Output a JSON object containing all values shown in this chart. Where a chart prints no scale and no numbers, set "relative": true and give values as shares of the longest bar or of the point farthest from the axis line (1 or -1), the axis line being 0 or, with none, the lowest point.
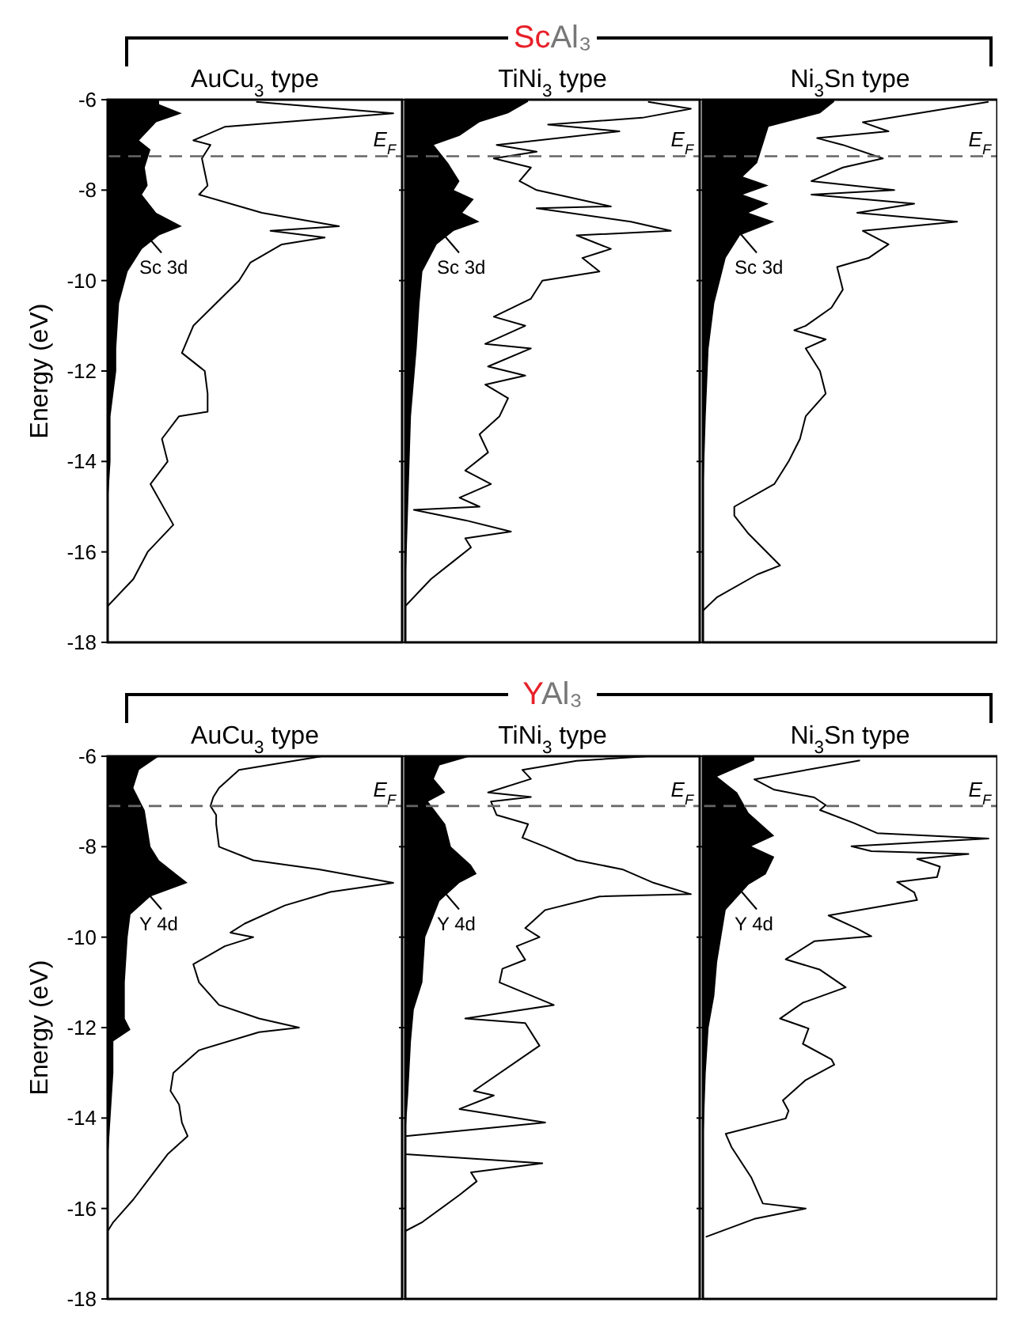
{
  "chart_data": [
    {
      "type": "line",
      "orientation": "horizontal",
      "relative": true,
      "subtitle": "AuCu$_{3}$ type",
      "ylabel": "Energy (eV)",
      "ylim": [
        -18,
        -6
      ],
      "yticks": [
        -6,
        -8,
        -10,
        -12,
        -14,
        -16,
        -18
      ],
      "tick_labels": "y",
      "annotations": [
        "Sc 3d"
      ],
      "ref_lines": [
        {
          "axis": "y",
          "value": -7.25,
          "label": "E$_{F}$",
          "color": "#666666",
          "line_style": "dashed"
        }
      ],
      "series": [
        {
          "type": "area",
          "color": "#000000",
          "x": [
            -6.0,
            -6.1,
            -6.3,
            -6.5,
            -6.9,
            -7.1,
            -7.5,
            -7.9,
            -8.1,
            -8.5,
            -8.8,
            -9.0,
            -9.3,
            -9.8,
            -10.5,
            -11.5,
            -12.0,
            -13.0,
            -14.0,
            -15.0,
            -17.0,
            -18.0
          ],
          "values": [
            0.18,
            0.18,
            0.26,
            0.17,
            0.11,
            0.15,
            0.13,
            0.14,
            0.12,
            0.17,
            0.26,
            0.18,
            0.12,
            0.07,
            0.04,
            0.03,
            0.03,
            0.01,
            0.01,
            0,
            0,
            0
          ]
        },
        {
          "type": "line",
          "color": "#000000",
          "x": [
            -6.05,
            -6.3,
            -6.6,
            -6.9,
            -7.0,
            -7.3,
            -7.6,
            -7.9,
            -8.1,
            -8.5,
            -8.8,
            -8.9,
            -9.05,
            -9.2,
            -9.6,
            -10.0,
            -10.5,
            -11.0,
            -11.6,
            -12.0,
            -12.5,
            -12.9,
            -13.0,
            -13.5,
            -14.0,
            -14.5,
            -15.4,
            -16.0,
            -16.6,
            -17.2
          ],
          "values": [
            0.52,
            1.0,
            0.41,
            0.3,
            0.36,
            0.33,
            0.34,
            0.35,
            0.32,
            0.54,
            0.81,
            0.57,
            0.76,
            0.61,
            0.5,
            0.46,
            0.38,
            0.3,
            0.26,
            0.34,
            0.35,
            0.35,
            0.25,
            0.19,
            0.21,
            0.15,
            0.23,
            0.14,
            0.09,
            0
          ]
        }
      ]
    },
    {
      "type": "line",
      "orientation": "horizontal",
      "relative": true,
      "title": "ScAl₃",
      "subtitle": "TiNi$_{3}$ type",
      "ylim": [
        -18,
        -6
      ],
      "yticks": [
        -6,
        -8,
        -10,
        -12,
        -14,
        -16,
        -18
      ],
      "tick_labels": false,
      "annotations": [
        "Sc 3d"
      ],
      "ref_lines": [
        {
          "axis": "y",
          "value": -7.25,
          "label": "E$_{F}$",
          "color": "#666666",
          "line_style": "dashed"
        }
      ],
      "series": [
        {
          "type": "area",
          "color": "#000000",
          "x": [
            -6.0,
            -6.05,
            -6.3,
            -6.5,
            -6.8,
            -7.0,
            -7.4,
            -7.8,
            -8.0,
            -8.2,
            -8.5,
            -8.7,
            -8.9,
            -9.2,
            -9.8,
            -10.5,
            -11.5,
            -13.0,
            -15.0,
            -17.0,
            -18.0
          ],
          "values": [
            0.43,
            0.43,
            0.36,
            0.26,
            0.19,
            0.1,
            0.15,
            0.19,
            0.17,
            0.24,
            0.2,
            0.26,
            0.17,
            0.11,
            0.06,
            0.05,
            0.04,
            0.02,
            0.01,
            0,
            0
          ]
        },
        {
          "type": "line",
          "color": "#000000",
          "x": [
            -6.05,
            -6.2,
            -6.4,
            -6.55,
            -6.7,
            -7.0,
            -7.15,
            -7.3,
            -7.5,
            -7.8,
            -8.0,
            -8.36,
            -8.4,
            -8.7,
            -8.9,
            -9.0,
            -9.3,
            -9.5,
            -9.8,
            -10.0,
            -10.4,
            -10.8,
            -11.0,
            -11.4,
            -11.5,
            -11.9,
            -12.1,
            -12.3,
            -12.6,
            -13.0,
            -13.4,
            -13.8,
            -14.2,
            -14.5,
            -14.8,
            -15.0,
            -15.07,
            -15.3,
            -15.55,
            -15.7,
            -15.9,
            -16.2,
            -16.6,
            -17.2
          ],
          "values": [
            0.85,
            1.0,
            0.83,
            0.5,
            0.75,
            0.32,
            0.46,
            0.31,
            0.44,
            0.4,
            0.46,
            0.72,
            0.46,
            0.79,
            0.93,
            0.6,
            0.72,
            0.62,
            0.68,
            0.48,
            0.44,
            0.31,
            0.42,
            0.28,
            0.44,
            0.29,
            0.42,
            0.28,
            0.36,
            0.33,
            0.26,
            0.29,
            0.21,
            0.3,
            0.19,
            0.26,
            0.03,
            0.21,
            0.37,
            0.21,
            0.23,
            0.17,
            0.09,
            0
          ]
        }
      ]
    },
    {
      "type": "line",
      "orientation": "horizontal",
      "relative": true,
      "subtitle": "Ni$_{3}$Sn type",
      "ylim": [
        -18,
        -6
      ],
      "yticks": [
        -6,
        -8,
        -10,
        -12,
        -14,
        -16,
        -18
      ],
      "tick_labels": false,
      "annotations": [
        "Sc 3d"
      ],
      "ref_lines": [
        {
          "axis": "y",
          "value": -7.25,
          "label": "E$_{F}$",
          "color": "#666666",
          "line_style": "dashed"
        }
      ],
      "series": [
        {
          "type": "area",
          "color": "#000000",
          "x": [
            -6.0,
            -6.05,
            -6.3,
            -6.6,
            -7.0,
            -7.4,
            -7.7,
            -7.9,
            -8.1,
            -8.3,
            -8.5,
            -8.7,
            -9.0,
            -9.5,
            -10.5,
            -11.5,
            -13.0,
            -15.0,
            -17.0,
            -18.0
          ],
          "values": [
            0.46,
            0.46,
            0.41,
            0.23,
            0.21,
            0.19,
            0.14,
            0.23,
            0.14,
            0.23,
            0.16,
            0.25,
            0.13,
            0.08,
            0.04,
            0.02,
            0.01,
            0,
            0,
            0
          ]
        },
        {
          "type": "line",
          "color": "#000000",
          "x": [
            -6.05,
            -6.2,
            -6.5,
            -6.7,
            -6.85,
            -7.0,
            -7.3,
            -7.5,
            -7.8,
            -8.0,
            -8.1,
            -8.3,
            -8.5,
            -8.7,
            -8.9,
            -9.2,
            -9.5,
            -9.7,
            -10.2,
            -10.6,
            -11.0,
            -11.1,
            -11.3,
            -11.5,
            -12.0,
            -12.5,
            -13.0,
            -13.5,
            -14.0,
            -14.5,
            -15.0,
            -15.2,
            -15.6,
            -16.3,
            -16.5,
            -17.0,
            -17.3
          ],
          "values": [
            1.0,
            0.85,
            0.56,
            0.65,
            0.4,
            0.49,
            0.63,
            0.49,
            0.38,
            0.67,
            0.38,
            0.74,
            0.54,
            0.89,
            0.56,
            0.65,
            0.58,
            0.47,
            0.49,
            0.45,
            0.36,
            0.32,
            0.43,
            0.36,
            0.41,
            0.43,
            0.36,
            0.34,
            0.3,
            0.25,
            0.11,
            0.11,
            0.16,
            0.27,
            0.19,
            0.05,
            0
          ]
        }
      ]
    },
    {
      "type": "line",
      "orientation": "horizontal",
      "relative": true,
      "subtitle": "AuCu$_{3}$ type",
      "ylabel": "Energy (eV)",
      "ylim": [
        -18,
        -6
      ],
      "yticks": [
        -6,
        -8,
        -10,
        -12,
        -14,
        -16,
        -18
      ],
      "tick_labels": "y",
      "annotations": [
        "Y 4d"
      ],
      "ref_lines": [
        {
          "axis": "y",
          "value": -7.1,
          "label": "E$_{F}$",
          "color": "#666666",
          "line_style": "dashed"
        }
      ],
      "series": [
        {
          "type": "area",
          "color": "#000000",
          "x": [
            -6.0,
            -6.3,
            -6.7,
            -7.2,
            -7.6,
            -8.0,
            -8.3,
            -8.6,
            -8.8,
            -9.1,
            -9.5,
            -10.0,
            -11.0,
            -11.8,
            -12.05,
            -12.3,
            -13.0,
            -14.0,
            -15.0,
            -16.0,
            -18.0
          ],
          "values": [
            0.18,
            0.11,
            0.09,
            0.13,
            0.14,
            0.15,
            0.18,
            0.24,
            0.28,
            0.15,
            0.08,
            0.07,
            0.06,
            0.06,
            0.08,
            0.02,
            0.02,
            0.01,
            0,
            0,
            0
          ]
        },
        {
          "type": "line",
          "color": "#000000",
          "x": [
            -6.0,
            -6.3,
            -6.7,
            -6.9,
            -7.1,
            -7.3,
            -7.5,
            -8.0,
            -8.3,
            -8.5,
            -8.8,
            -9.0,
            -9.3,
            -9.7,
            -9.9,
            -10.0,
            -10.2,
            -10.6,
            -11.0,
            -11.5,
            -11.8,
            -12.0,
            -12.1,
            -12.5,
            -13.0,
            -13.4,
            -13.7,
            -14.1,
            -14.4,
            -14.8,
            -15.3,
            -15.8,
            -16.3,
            -16.5
          ],
          "values": [
            0.75,
            0.46,
            0.39,
            0.37,
            0.36,
            0.38,
            0.38,
            0.39,
            0.51,
            0.74,
            1.0,
            0.78,
            0.62,
            0.48,
            0.43,
            0.51,
            0.41,
            0.3,
            0.32,
            0.39,
            0.53,
            0.67,
            0.53,
            0.32,
            0.23,
            0.22,
            0.25,
            0.26,
            0.28,
            0.21,
            0.15,
            0.09,
            0.02,
            0
          ]
        }
      ]
    },
    {
      "type": "line",
      "orientation": "horizontal",
      "relative": true,
      "title": "YAl₃",
      "subtitle": "TiNi$_{3}$ type",
      "ylim": [
        -18,
        -6
      ],
      "yticks": [
        -6,
        -8,
        -10,
        -12,
        -14,
        -16,
        -18
      ],
      "tick_labels": false,
      "annotations": [
        "Y 4d"
      ],
      "ref_lines": [
        {
          "axis": "y",
          "value": -7.1,
          "label": "E$_{F}$",
          "color": "#666666",
          "line_style": "dashed"
        }
      ],
      "series": [
        {
          "type": "area",
          "color": "#000000",
          "x": [
            -6.0,
            -6.2,
            -6.5,
            -6.8,
            -7.0,
            -7.5,
            -8.0,
            -8.4,
            -8.6,
            -8.8,
            -9.2,
            -10.0,
            -11.0,
            -11.6,
            -12.3,
            -13.5,
            -14.4,
            -18.0
          ],
          "values": [
            0.23,
            0.12,
            0.1,
            0.14,
            0.08,
            0.14,
            0.16,
            0.23,
            0.25,
            0.19,
            0.12,
            0.07,
            0.06,
            0.03,
            0.02,
            0.01,
            0,
            0
          ]
        },
        {
          "type": "line",
          "color": "#000000",
          "x": [
            -6.0,
            -6.1,
            -6.3,
            -6.5,
            -6.8,
            -6.9,
            -7.0,
            -7.3,
            -7.5,
            -7.8,
            -8.0,
            -8.3,
            -8.5,
            -8.8,
            -9.05,
            -9.1,
            -9.4,
            -9.8,
            -10.0,
            -10.2,
            -10.5,
            -10.7,
            -11.0,
            -11.5,
            -11.8,
            -11.9,
            -12.4,
            -13.4,
            -13.5,
            -13.8,
            -14.1,
            -14.4,
            -14.8,
            -15.0,
            -15.2,
            -15.4,
            -15.7,
            -16.3,
            -16.5
          ],
          "values": [
            0.85,
            0.6,
            0.41,
            0.44,
            0.29,
            0.44,
            0.3,
            0.32,
            0.43,
            0.41,
            0.49,
            0.6,
            0.76,
            0.87,
            1.0,
            0.68,
            0.49,
            0.42,
            0.47,
            0.39,
            0.42,
            0.34,
            0.33,
            0.52,
            0.21,
            0.42,
            0.47,
            0.24,
            0.31,
            0.19,
            0.49,
            0,
            0,
            0.48,
            0.23,
            0.25,
            0.19,
            0.06,
            0
          ]
        }
      ]
    },
    {
      "type": "line",
      "orientation": "horizontal",
      "relative": true,
      "subtitle": "Ni$_{3}$Sn type",
      "ylim": [
        -18,
        -6
      ],
      "yticks": [
        -6,
        -8,
        -10,
        -12,
        -14,
        -16,
        -18
      ],
      "tick_labels": false,
      "annotations": [
        "Y 4d"
      ],
      "ref_lines": [
        {
          "axis": "y",
          "value": -7.1,
          "label": "E$_{F}$",
          "color": "#666666",
          "line_style": "dashed"
        }
      ],
      "series": [
        {
          "type": "area",
          "color": "#000000",
          "x": [
            -6.0,
            -6.09,
            -6.45,
            -6.8,
            -7.25,
            -7.76,
            -7.99,
            -8.22,
            -8.61,
            -8.84,
            -9.4,
            -10.55,
            -11.3,
            -12.0,
            -13.0,
            -14.8,
            -18.0
          ],
          "values": [
            0.18,
            0.18,
            0.05,
            0.12,
            0.16,
            0.25,
            0.17,
            0.25,
            0.22,
            0.16,
            0.08,
            0.05,
            0.04,
            0.02,
            0.01,
            0,
            0
          ]
        },
        {
          "type": "line",
          "color": "#000000",
          "x": [
            -6.09,
            -6.51,
            -6.74,
            -6.91,
            -7.08,
            -7.19,
            -7.48,
            -7.7,
            -7.82,
            -7.99,
            -8.1,
            -8.16,
            -8.27,
            -8.44,
            -8.67,
            -8.78,
            -9.01,
            -9.18,
            -9.52,
            -9.81,
            -9.98,
            -10.09,
            -10.49,
            -10.72,
            -11.11,
            -11.45,
            -11.8,
            -12.02,
            -12.36,
            -12.7,
            -12.82,
            -13.16,
            -13.61,
            -13.84,
            -14.01,
            -14.35,
            -14.64,
            -15.32,
            -15.89,
            -16.0,
            -16.23,
            -16.63
          ],
          "values": [
            0.55,
            0.18,
            0.25,
            0.39,
            0.43,
            0.41,
            0.53,
            0.61,
            1.0,
            0.52,
            0.59,
            0.93,
            0.75,
            0.83,
            0.82,
            0.68,
            0.74,
            0.75,
            0.44,
            0.54,
            0.59,
            0.39,
            0.29,
            0.41,
            0.5,
            0.35,
            0.27,
            0.37,
            0.35,
            0.45,
            0.46,
            0.36,
            0.28,
            0.3,
            0.29,
            0.08,
            0.1,
            0.17,
            0.21,
            0.36,
            0.18,
            0.01
          ]
        }
      ]
    }
  ]
}
